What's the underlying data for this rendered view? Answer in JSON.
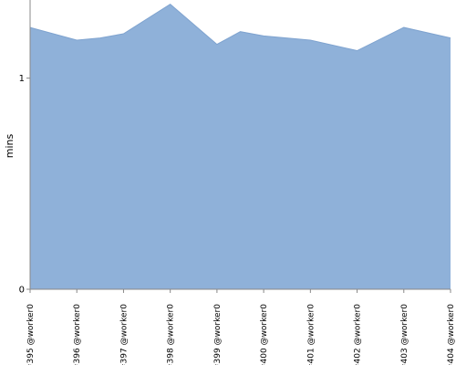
{
  "chart_data": {
    "type": "area",
    "ylabel": "mins",
    "xlabel": "",
    "ylim": [
      0,
      1.37
    ],
    "yticks": [
      0,
      1
    ],
    "ytick_labels": [
      "0",
      "1"
    ],
    "grid": "horizontal dotted at y=1",
    "categories": [
      "#395 @worker0",
      "#396 @worker0",
      "#397 @worker0",
      "#398 @worker0",
      "#399 @worker0",
      "#400 @worker0",
      "#401 @worker0",
      "#402 @worker0",
      "#403 @worker0",
      "#404 @worker0"
    ],
    "x": [
      0,
      1,
      1.5,
      2,
      3,
      4,
      4.5,
      5,
      6,
      7,
      8,
      9
    ],
    "values": [
      1.24,
      1.18,
      1.19,
      1.21,
      1.35,
      1.16,
      1.22,
      1.2,
      1.18,
      1.13,
      1.24,
      1.19
    ],
    "series_color": "#8fb1d9",
    "series_line_color": "#7fa3cf"
  }
}
